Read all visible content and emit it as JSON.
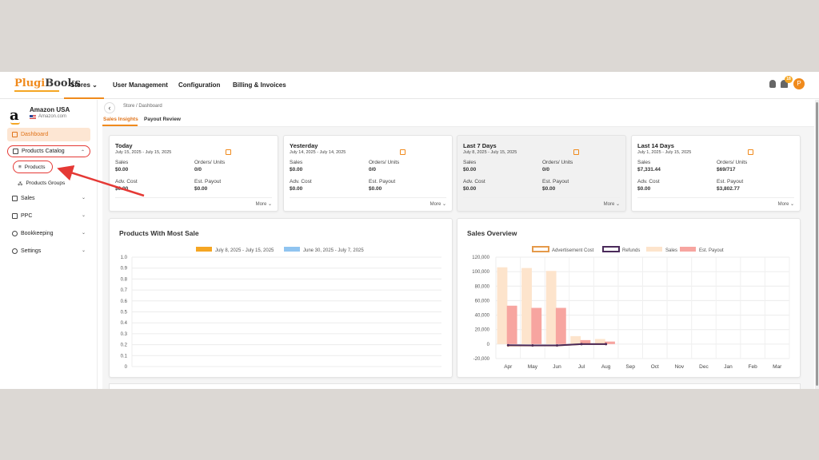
{
  "brand": {
    "part1": "Plugi",
    "part2": "Books"
  },
  "topnav": {
    "items": [
      "Stores",
      "User Management",
      "Configuration",
      "Billing & Invoices"
    ],
    "notif_count": "18",
    "avatar_letter": "P"
  },
  "store": {
    "logo": "a",
    "name": "Amazon USA",
    "domain": "Amazon.com"
  },
  "sidebar": {
    "dashboard": "Dashboard",
    "catalog": "Products Catalog",
    "products": "Products",
    "groups": "Products Groups",
    "sales": "Sales",
    "ppc": "PPC",
    "bookkeeping": "Bookkeeping",
    "settings": "Settings"
  },
  "breadcrumb": "Store  /  Dashboard",
  "tabs": [
    "Sales Insights",
    "Payout Review"
  ],
  "labels": {
    "sales": "Sales",
    "orders": "Orders/ Units",
    "adv": "Adv. Cost",
    "payout": "Est. Payout",
    "more": "More"
  },
  "cards": [
    {
      "title": "Today",
      "range": "July 15, 2025 - July 15, 2025",
      "sales": "$0.00",
      "orders": "0/0",
      "adv": "$0.00",
      "payout": "$0.00"
    },
    {
      "title": "Yesterday",
      "range": "July 14, 2025 - July 14, 2025",
      "sales": "$0.00",
      "orders": "0/0",
      "adv": "$0.00",
      "payout": "$0.00"
    },
    {
      "title": "Last 7 Days",
      "range": "July 8, 2025 - July 15, 2025",
      "sales": "$0.00",
      "orders": "0/0",
      "adv": "$0.00",
      "payout": "$0.00"
    },
    {
      "title": "Last 14 Days",
      "range": "July 1, 2025 - July 15, 2025",
      "sales": "$7,331.44",
      "orders": "$69/717",
      "adv": "$0.00",
      "payout": "$3,802.77"
    }
  ],
  "chart_data": [
    {
      "type": "bar",
      "title": "Products With Most Sale",
      "legend_position": "top",
      "series": [
        {
          "name": "July 8, 2025 - July 15, 2025",
          "color": "#f5a623",
          "values": []
        },
        {
          "name": "June 30, 2025 - July 7, 2025",
          "color": "#90c4f0",
          "values": []
        }
      ],
      "yticks": [
        "1.0",
        "0.9",
        "0.8",
        "0.7",
        "0.6",
        "0.5",
        "0.4",
        "0.3",
        "0.2",
        "0.1",
        "0"
      ],
      "ylim": [
        0,
        1.0
      ],
      "grid": true
    },
    {
      "type": "bar",
      "title": "Sales Overview",
      "legend_position": "top",
      "categories": [
        "Apr",
        "May",
        "Jun",
        "Jul",
        "Aug",
        "Sep",
        "Oct",
        "Nov",
        "Dec",
        "Jan",
        "Feb",
        "Mar"
      ],
      "series": [
        {
          "name": "Sales",
          "type": "bar",
          "color": "#fde4cc",
          "values": [
            106000,
            105000,
            101000,
            11000,
            7000,
            0,
            0,
            0,
            0,
            0,
            0,
            0
          ]
        },
        {
          "name": "Est. Payout",
          "type": "bar",
          "color": "#f7a5a0",
          "values": [
            53000,
            50000,
            50000,
            5500,
            3500,
            0,
            0,
            0,
            0,
            0,
            0,
            0
          ]
        },
        {
          "name": "Advertisement Cost",
          "type": "line",
          "color": "#e59a4a",
          "values": [
            -2000,
            -2000,
            -2000,
            0,
            0,
            null,
            null,
            null,
            null,
            null,
            null,
            null
          ]
        },
        {
          "name": "Refunds",
          "type": "line",
          "color": "#4a2a5a",
          "values": [
            -1500,
            -1800,
            -1800,
            0,
            0,
            null,
            null,
            null,
            null,
            null,
            null,
            null
          ]
        }
      ],
      "yticks": [
        "120,000",
        "100,000",
        "80,000",
        "60,000",
        "40,000",
        "20,000",
        "0",
        "-20,000"
      ],
      "ylim": [
        -20000,
        120000
      ],
      "grid": true
    }
  ]
}
